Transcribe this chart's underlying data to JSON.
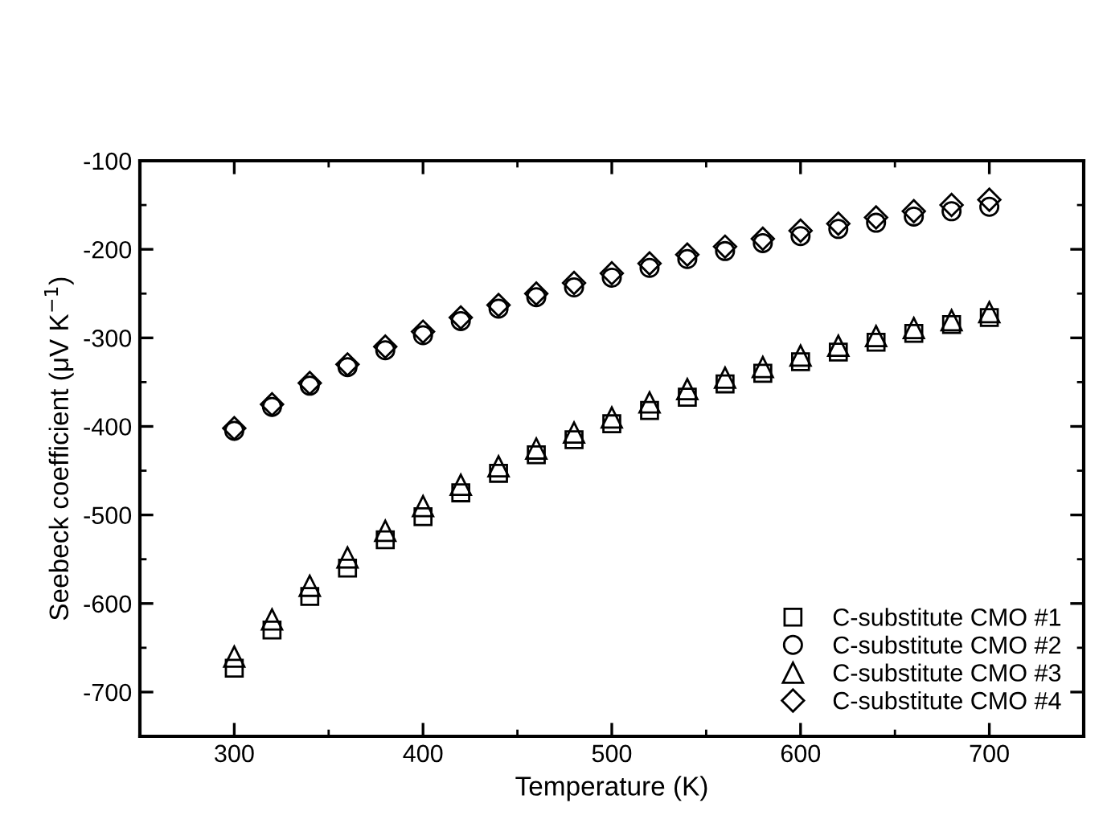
{
  "chart_data": {
    "type": "scatter",
    "xlabel": "Temperature (K)",
    "ylabel": "Seebeck coefficient (μV K$^{−1}$)",
    "x": [
      300,
      320,
      340,
      360,
      380,
      400,
      420,
      440,
      460,
      480,
      500,
      520,
      540,
      560,
      580,
      600,
      620,
      640,
      660,
      680,
      700
    ],
    "series": [
      {
        "name": "C-substitute CMO #1",
        "color": "#000000",
        "marker": "square",
        "values": [
          -673,
          -630,
          -592,
          -560,
          -528,
          -502,
          -475,
          -453,
          -432,
          -415,
          -397,
          -382,
          -367,
          -352,
          -340,
          -327,
          -316,
          -305,
          -295,
          -285,
          -277
        ]
      },
      {
        "name": "C-substitute CMO #2",
        "color": "#000000",
        "marker": "circle",
        "values": [
          -405,
          -378,
          -354,
          -333,
          -314,
          -297,
          -281,
          -267,
          -254,
          -243,
          -232,
          -221,
          -211,
          -202,
          -193,
          -185,
          -177,
          -170,
          -163,
          -157,
          -152
        ]
      },
      {
        "name": "C-substitute CMO #3",
        "color": "#000000",
        "marker": "triangle",
        "values": [
          -660,
          -618,
          -580,
          -548,
          -518,
          -490,
          -466,
          -445,
          -425,
          -407,
          -390,
          -373,
          -358,
          -345,
          -333,
          -320,
          -309,
          -298,
          -289,
          -280,
          -271
        ]
      },
      {
        "name": "C-substitute CMO #4",
        "color": "#000000",
        "marker": "diamond",
        "values": [
          -402,
          -375,
          -351,
          -330,
          -310,
          -293,
          -277,
          -263,
          -250,
          -238,
          -227,
          -216,
          -206,
          -197,
          -188,
          -179,
          -171,
          -164,
          -157,
          -150,
          -144
        ]
      }
    ],
    "xlim": [
      250,
      750
    ],
    "xticks": [
      300,
      400,
      500,
      600,
      700
    ],
    "ylim": [
      -750,
      -100
    ],
    "yticks": [
      -700,
      -600,
      -500,
      -400,
      -300,
      -200,
      -100
    ],
    "grid": false,
    "legend": "bottom right"
  }
}
